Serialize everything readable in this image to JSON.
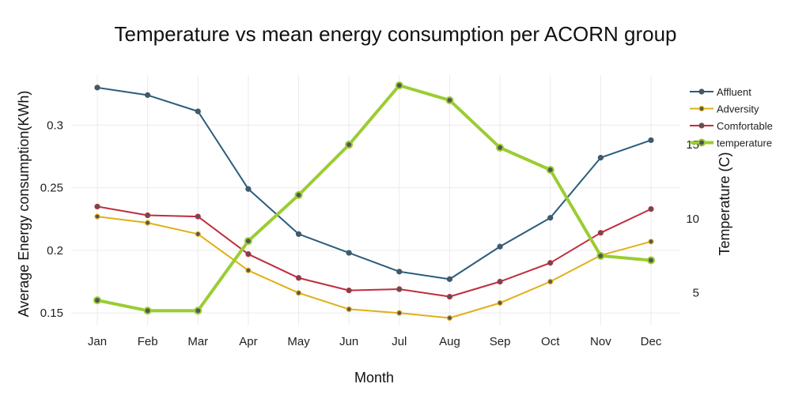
{
  "chart_data": {
    "type": "line",
    "title": "Temperature vs mean energy consumption per ACORN group",
    "xlabel": "Month",
    "ylabel": "Average Energy consumption(KWh)",
    "y2label": "Temperature (C)",
    "categories": [
      "Jan",
      "Feb",
      "Mar",
      "Apr",
      "May",
      "Jun",
      "Jul",
      "Aug",
      "Sep",
      "Oct",
      "Nov",
      "Dec"
    ],
    "ylim": [
      0.14,
      0.34
    ],
    "y_ticks": [
      "0.15",
      "0.2",
      "0.25",
      "0.3"
    ],
    "y2lim": [
      2.8,
      19.7
    ],
    "y2_ticks": [
      "5",
      "10",
      "15"
    ],
    "grid": true,
    "legend_position": "top-right",
    "series": [
      {
        "name": "Affluent",
        "axis": "y",
        "color": "#2b5d7c",
        "values": [
          0.33,
          0.324,
          0.311,
          0.249,
          0.213,
          0.198,
          0.183,
          0.177,
          0.203,
          0.226,
          0.274,
          0.288
        ]
      },
      {
        "name": "Adversity",
        "axis": "y",
        "color": "#e0b018",
        "values": [
          0.227,
          0.222,
          0.213,
          0.184,
          0.166,
          0.153,
          0.15,
          0.146,
          0.158,
          0.175,
          0.196,
          0.207
        ]
      },
      {
        "name": "Comfortable",
        "axis": "y",
        "color": "#bf2d3e",
        "values": [
          0.235,
          0.228,
          0.227,
          0.197,
          0.178,
          0.168,
          0.169,
          0.163,
          0.175,
          0.19,
          0.214,
          0.233
        ]
      },
      {
        "name": "temperature",
        "axis": "y2",
        "color": "#9acd32",
        "values": [
          4.5,
          3.8,
          3.8,
          8.5,
          11.6,
          15.0,
          19.0,
          18.0,
          14.8,
          13.3,
          7.5,
          7.2
        ]
      }
    ]
  }
}
